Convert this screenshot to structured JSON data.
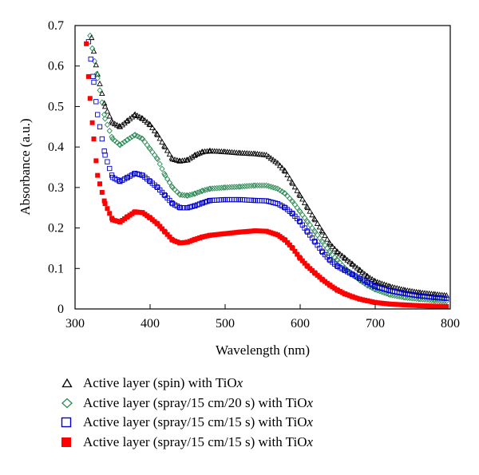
{
  "chart_data": {
    "type": "scatter",
    "xlabel": "Wavelength (nm)",
    "ylabel": "Absorbance (a.u.)",
    "xlim": [
      300,
      800
    ],
    "ylim": [
      0,
      0.7
    ],
    "x_ticks": [
      "300",
      "400",
      "500",
      "600",
      "700",
      "800"
    ],
    "y_ticks": [
      "0",
      "0.1",
      "0.2",
      "0.3",
      "0.4",
      "0.5",
      "0.6",
      "0.7"
    ],
    "grid": false,
    "legend_position": "below",
    "series": [
      {
        "name": "Active layer (spin) with TiO",
        "name_suffix": "x",
        "marker": "triangle-open",
        "color": "#000000",
        "points": [
          [
            322,
            0.67
          ],
          [
            330,
            0.58
          ],
          [
            340,
            0.5
          ],
          [
            350,
            0.46
          ],
          [
            360,
            0.45
          ],
          [
            370,
            0.465
          ],
          [
            380,
            0.48
          ],
          [
            390,
            0.47
          ],
          [
            400,
            0.455
          ],
          [
            410,
            0.43
          ],
          [
            420,
            0.4
          ],
          [
            430,
            0.37
          ],
          [
            440,
            0.365
          ],
          [
            450,
            0.368
          ],
          [
            460,
            0.38
          ],
          [
            470,
            0.388
          ],
          [
            480,
            0.39
          ],
          [
            500,
            0.388
          ],
          [
            520,
            0.385
          ],
          [
            540,
            0.383
          ],
          [
            555,
            0.38
          ],
          [
            570,
            0.36
          ],
          [
            580,
            0.34
          ],
          [
            590,
            0.31
          ],
          [
            600,
            0.28
          ],
          [
            610,
            0.25
          ],
          [
            620,
            0.22
          ],
          [
            630,
            0.19
          ],
          [
            640,
            0.16
          ],
          [
            650,
            0.14
          ],
          [
            660,
            0.125
          ],
          [
            670,
            0.11
          ],
          [
            680,
            0.095
          ],
          [
            690,
            0.08
          ],
          [
            700,
            0.068
          ],
          [
            720,
            0.055
          ],
          [
            740,
            0.046
          ],
          [
            760,
            0.04
          ],
          [
            780,
            0.036
          ],
          [
            795,
            0.033
          ]
        ]
      },
      {
        "name": "Active layer (spray/15 cm/20 s) with TiO",
        "name_suffix": "x",
        "marker": "diamond-open",
        "color": "#2e8b57",
        "points": [
          [
            320,
            0.675
          ],
          [
            330,
            0.57
          ],
          [
            340,
            0.47
          ],
          [
            350,
            0.42
          ],
          [
            360,
            0.405
          ],
          [
            370,
            0.418
          ],
          [
            380,
            0.43
          ],
          [
            390,
            0.42
          ],
          [
            400,
            0.395
          ],
          [
            410,
            0.37
          ],
          [
            420,
            0.33
          ],
          [
            430,
            0.3
          ],
          [
            440,
            0.282
          ],
          [
            450,
            0.28
          ],
          [
            460,
            0.285
          ],
          [
            470,
            0.292
          ],
          [
            480,
            0.297
          ],
          [
            500,
            0.3
          ],
          [
            520,
            0.302
          ],
          [
            540,
            0.305
          ],
          [
            555,
            0.305
          ],
          [
            570,
            0.297
          ],
          [
            580,
            0.285
          ],
          [
            590,
            0.265
          ],
          [
            600,
            0.24
          ],
          [
            610,
            0.215
          ],
          [
            620,
            0.19
          ],
          [
            630,
            0.165
          ],
          [
            640,
            0.14
          ],
          [
            650,
            0.12
          ],
          [
            660,
            0.1
          ],
          [
            670,
            0.085
          ],
          [
            680,
            0.07
          ],
          [
            690,
            0.058
          ],
          [
            700,
            0.048
          ],
          [
            720,
            0.035
          ],
          [
            740,
            0.028
          ],
          [
            760,
            0.024
          ],
          [
            780,
            0.021
          ],
          [
            795,
            0.019
          ]
        ]
      },
      {
        "name": "Active layer (spray/15 cm/15 s) with TiO",
        "name_suffix": "x",
        "marker": "square-open",
        "color": "#0000cd",
        "points": [
          [
            318,
            0.66
          ],
          [
            325,
            0.56
          ],
          [
            330,
            0.48
          ],
          [
            340,
            0.38
          ],
          [
            350,
            0.325
          ],
          [
            360,
            0.315
          ],
          [
            370,
            0.325
          ],
          [
            380,
            0.335
          ],
          [
            390,
            0.33
          ],
          [
            400,
            0.315
          ],
          [
            410,
            0.3
          ],
          [
            420,
            0.28
          ],
          [
            430,
            0.26
          ],
          [
            440,
            0.25
          ],
          [
            450,
            0.25
          ],
          [
            460,
            0.255
          ],
          [
            470,
            0.262
          ],
          [
            480,
            0.268
          ],
          [
            500,
            0.27
          ],
          [
            520,
            0.27
          ],
          [
            540,
            0.268
          ],
          [
            555,
            0.267
          ],
          [
            570,
            0.26
          ],
          [
            580,
            0.25
          ],
          [
            590,
            0.235
          ],
          [
            600,
            0.215
          ],
          [
            610,
            0.19
          ],
          [
            620,
            0.165
          ],
          [
            630,
            0.14
          ],
          [
            640,
            0.12
          ],
          [
            650,
            0.105
          ],
          [
            660,
            0.095
          ],
          [
            670,
            0.085
          ],
          [
            680,
            0.075
          ],
          [
            690,
            0.065
          ],
          [
            700,
            0.055
          ],
          [
            720,
            0.045
          ],
          [
            740,
            0.038
          ],
          [
            760,
            0.032
          ],
          [
            780,
            0.028
          ],
          [
            795,
            0.026
          ]
        ]
      },
      {
        "name": "Active layer (spray/15 cm/15 s) with TiO",
        "name_suffix": "x",
        "marker": "square-filled",
        "color": "#ff0000",
        "points": [
          [
            315,
            0.655
          ],
          [
            320,
            0.52
          ],
          [
            325,
            0.42
          ],
          [
            330,
            0.33
          ],
          [
            340,
            0.26
          ],
          [
            350,
            0.22
          ],
          [
            360,
            0.215
          ],
          [
            370,
            0.228
          ],
          [
            380,
            0.24
          ],
          [
            390,
            0.238
          ],
          [
            400,
            0.225
          ],
          [
            410,
            0.21
          ],
          [
            420,
            0.19
          ],
          [
            430,
            0.17
          ],
          [
            440,
            0.163
          ],
          [
            450,
            0.165
          ],
          [
            460,
            0.172
          ],
          [
            470,
            0.178
          ],
          [
            480,
            0.182
          ],
          [
            500,
            0.186
          ],
          [
            520,
            0.19
          ],
          [
            540,
            0.193
          ],
          [
            555,
            0.192
          ],
          [
            570,
            0.183
          ],
          [
            580,
            0.17
          ],
          [
            590,
            0.15
          ],
          [
            600,
            0.125
          ],
          [
            610,
            0.105
          ],
          [
            620,
            0.088
          ],
          [
            630,
            0.072
          ],
          [
            640,
            0.058
          ],
          [
            650,
            0.046
          ],
          [
            660,
            0.037
          ],
          [
            670,
            0.03
          ],
          [
            680,
            0.024
          ],
          [
            690,
            0.02
          ],
          [
            700,
            0.016
          ],
          [
            720,
            0.012
          ],
          [
            740,
            0.01
          ],
          [
            760,
            0.008
          ],
          [
            780,
            0.007
          ],
          [
            795,
            0.006
          ]
        ]
      }
    ]
  }
}
